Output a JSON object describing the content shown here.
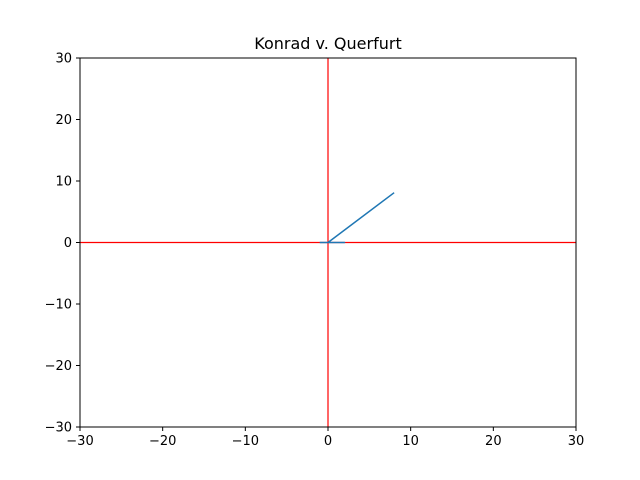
{
  "chart_data": {
    "type": "line",
    "title": "Konrad v. Querfurt",
    "xlabel": "",
    "ylabel": "",
    "xlim": [
      -30,
      30
    ],
    "ylim": [
      -30,
      30
    ],
    "xticks": [
      -30,
      -20,
      -10,
      0,
      10,
      20,
      30
    ],
    "yticks": [
      -30,
      -20,
      -10,
      0,
      10,
      20,
      30
    ],
    "xtick_labels": [
      "−30",
      "−20",
      "−10",
      "0",
      "10",
      "20",
      "30"
    ],
    "ytick_labels": [
      "−30",
      "−20",
      "−10",
      "0",
      "10",
      "20",
      "30"
    ],
    "grid": false,
    "reference_lines": {
      "x": 0,
      "y": 0,
      "color": "#ff0000"
    },
    "series": [
      {
        "color": "#1f77b4",
        "points": [
          [
            -1,
            0
          ],
          [
            2,
            0
          ],
          [
            0,
            0
          ],
          [
            8,
            8.1
          ]
        ]
      }
    ]
  }
}
